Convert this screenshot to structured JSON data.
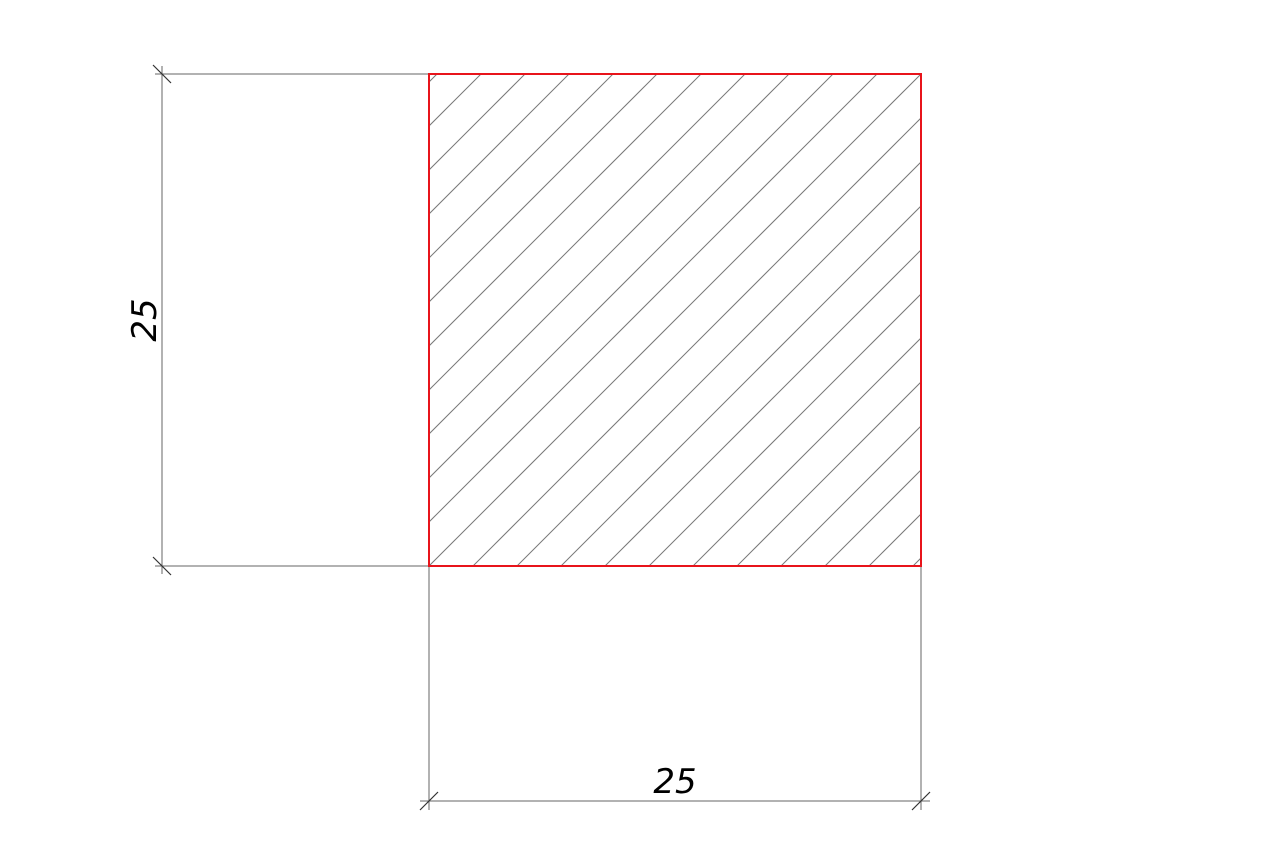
{
  "drawing": {
    "section": {
      "shape": "square",
      "outline_color": "#e8141b",
      "hatch": "diagonal-45"
    },
    "dimensions": {
      "vertical": {
        "label": "25"
      },
      "horizontal": {
        "label": "25"
      }
    }
  }
}
